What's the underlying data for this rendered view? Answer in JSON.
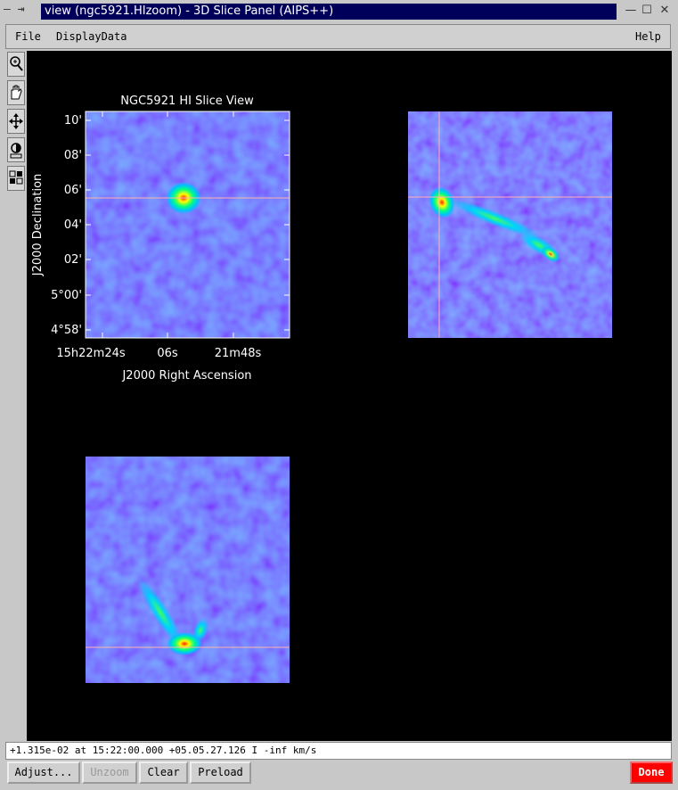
{
  "window": {
    "title": "view (ngc5921.HIzoom) - 3D Slice Panel (AIPS++)",
    "wm_left_glyph": "— ⇥",
    "minimize_glyph": "—",
    "maximize_glyph": "☐",
    "close_glyph": "✕"
  },
  "menubar": {
    "file": "File",
    "displaydata": "DisplayData",
    "help": "Help"
  },
  "panels": {
    "main": {
      "title": "NGC5921 HI Slice View",
      "xlabel": "J2000 Right Ascension",
      "ylabel": "J2000 Declination",
      "yticks": [
        "10'",
        "08'",
        "06'",
        "04'",
        "02'",
        "5°00'",
        "4°58'"
      ],
      "xticks": [
        "15h22m24s",
        "06s",
        "21m48s"
      ]
    }
  },
  "status": {
    "text": "+1.315e-02  at 15:22:00.000 +05.05.27.126 I -inf km/s"
  },
  "buttons": {
    "adjust": "Adjust...",
    "unzoom": "Unzoom",
    "clear": "Clear",
    "preload": "Preload",
    "done": "Done"
  },
  "colors": {
    "background": "#000000",
    "cursor_line": "#ffb0b0",
    "done": "#ff0000",
    "title_bg": "#00005a"
  },
  "icons": [
    "zoom-icon",
    "pan-hand-icon",
    "move-crosshair-icon",
    "colormap-adjust-icon",
    "layout-icon"
  ]
}
